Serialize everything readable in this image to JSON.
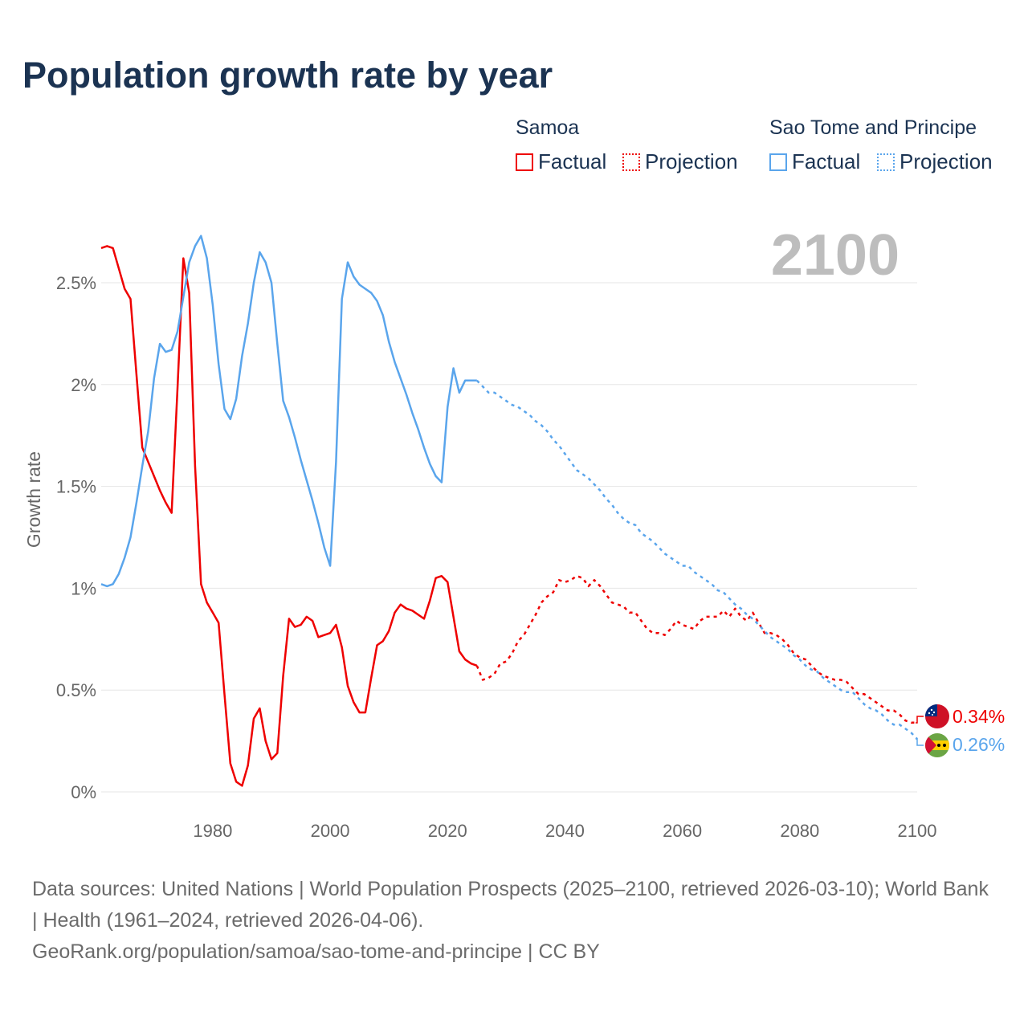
{
  "title": "Population growth rate by year",
  "legend": {
    "groups": [
      {
        "country": "Samoa",
        "factual": "Factual",
        "projection": "Projection",
        "color": "#ee0000"
      },
      {
        "country": "Sao Tome and Principe",
        "factual": "Factual",
        "projection": "Projection",
        "color": "#5aa5ec"
      }
    ]
  },
  "year_label": "2100",
  "end_labels": {
    "samoa": "0.34%",
    "stp": "0.26%"
  },
  "footer": {
    "sources": "Data sources: United Nations | World Population Prospects (2025–2100, retrieved 2026-03-10); World Bank | Health (1961–2024, retrieved 2026-04-06).",
    "link": "GeoRank.org/population/samoa/sao-tome-and-principe | CC BY"
  },
  "chart_data": {
    "type": "line",
    "title": "Population growth rate by year",
    "xlabel": "",
    "ylabel": "Growth rate",
    "xlim": [
      1961,
      2100
    ],
    "ylim": [
      0,
      2.75
    ],
    "xticks": [
      1980,
      2000,
      2020,
      2040,
      2060,
      2080,
      2100
    ],
    "yticks": [
      0,
      0.5,
      1,
      1.5,
      2,
      2.5
    ],
    "ytick_labels": [
      "0%",
      "0.5%",
      "1%",
      "1.5%",
      "2%",
      "2.5%"
    ],
    "grid": true,
    "series": [
      {
        "name": "Samoa Factual",
        "color": "#ee0000",
        "style": "solid",
        "x_start": 1961,
        "values": [
          2.67,
          2.68,
          2.67,
          2.57,
          2.47,
          2.42,
          2.05,
          1.69,
          1.62,
          1.55,
          1.48,
          1.42,
          1.37,
          1.98,
          2.62,
          2.45,
          1.6,
          1.02,
          0.93,
          0.88,
          0.83,
          0.48,
          0.14,
          0.05,
          0.03,
          0.13,
          0.36,
          0.41,
          0.25,
          0.16,
          0.19,
          0.57,
          0.85,
          0.81,
          0.82,
          0.86,
          0.84,
          0.76,
          0.77,
          0.78,
          0.82,
          0.71,
          0.52,
          0.44,
          0.39,
          0.39,
          0.56,
          0.72,
          0.74,
          0.79,
          0.88,
          0.92,
          0.9,
          0.89,
          0.87,
          0.85,
          0.94,
          1.05,
          1.06,
          1.03,
          0.86,
          0.69,
          0.65,
          0.63,
          0.62
        ]
      },
      {
        "name": "Samoa Projection",
        "color": "#ee0000",
        "style": "dotted",
        "x_start": 2025,
        "values": [
          0.62,
          0.55,
          0.56,
          0.58,
          0.63,
          0.64,
          0.68,
          0.74,
          0.77,
          0.82,
          0.87,
          0.93,
          0.96,
          0.98,
          1.04,
          1.03,
          1.04,
          1.06,
          1.05,
          1.01,
          1.04,
          1.01,
          0.97,
          0.93,
          0.92,
          0.91,
          0.88,
          0.88,
          0.84,
          0.8,
          0.78,
          0.78,
          0.77,
          0.8,
          0.84,
          0.82,
          0.81,
          0.8,
          0.84,
          0.86,
          0.86,
          0.86,
          0.89,
          0.86,
          0.9,
          0.86,
          0.84,
          0.88,
          0.83,
          0.78,
          0.78,
          0.77,
          0.75,
          0.72,
          0.68,
          0.66,
          0.65,
          0.62,
          0.59,
          0.57,
          0.56,
          0.55,
          0.55,
          0.54,
          0.51,
          0.48,
          0.48,
          0.46,
          0.44,
          0.42,
          0.4,
          0.4,
          0.38,
          0.35,
          0.34,
          0.34
        ]
      },
      {
        "name": "Sao Tome and Principe Factual",
        "color": "#5aa5ec",
        "style": "solid",
        "x_start": 1961,
        "values": [
          1.02,
          1.01,
          1.02,
          1.07,
          1.15,
          1.25,
          1.42,
          1.6,
          1.77,
          2.03,
          2.2,
          2.16,
          2.17,
          2.26,
          2.43,
          2.6,
          2.68,
          2.73,
          2.62,
          2.39,
          2.1,
          1.88,
          1.83,
          1.93,
          2.14,
          2.3,
          2.5,
          2.65,
          2.6,
          2.5,
          2.2,
          1.92,
          1.84,
          1.74,
          1.63,
          1.53,
          1.43,
          1.32,
          1.2,
          1.11,
          1.62,
          2.42,
          2.6,
          2.53,
          2.49,
          2.47,
          2.45,
          2.41,
          2.34,
          2.21,
          2.11,
          2.03,
          1.95,
          1.86,
          1.78,
          1.69,
          1.61,
          1.55,
          1.52,
          1.89,
          2.08,
          1.96,
          2.02,
          2.02,
          2.02
        ]
      },
      {
        "name": "Sao Tome and Principe Projection",
        "color": "#5aa5ec",
        "style": "dotted",
        "x_start": 2025,
        "values": [
          2.02,
          1.99,
          1.96,
          1.96,
          1.94,
          1.92,
          1.9,
          1.89,
          1.87,
          1.85,
          1.82,
          1.8,
          1.77,
          1.73,
          1.7,
          1.66,
          1.62,
          1.58,
          1.56,
          1.54,
          1.51,
          1.48,
          1.44,
          1.41,
          1.37,
          1.34,
          1.32,
          1.31,
          1.27,
          1.25,
          1.23,
          1.2,
          1.17,
          1.15,
          1.13,
          1.11,
          1.11,
          1.08,
          1.06,
          1.04,
          1.02,
          0.99,
          0.98,
          0.95,
          0.92,
          0.9,
          0.87,
          0.85,
          0.82,
          0.79,
          0.76,
          0.74,
          0.72,
          0.7,
          0.67,
          0.65,
          0.62,
          0.6,
          0.59,
          0.56,
          0.54,
          0.52,
          0.5,
          0.49,
          0.49,
          0.46,
          0.43,
          0.41,
          0.4,
          0.38,
          0.35,
          0.33,
          0.33,
          0.31,
          0.29,
          0.26
        ]
      }
    ]
  }
}
